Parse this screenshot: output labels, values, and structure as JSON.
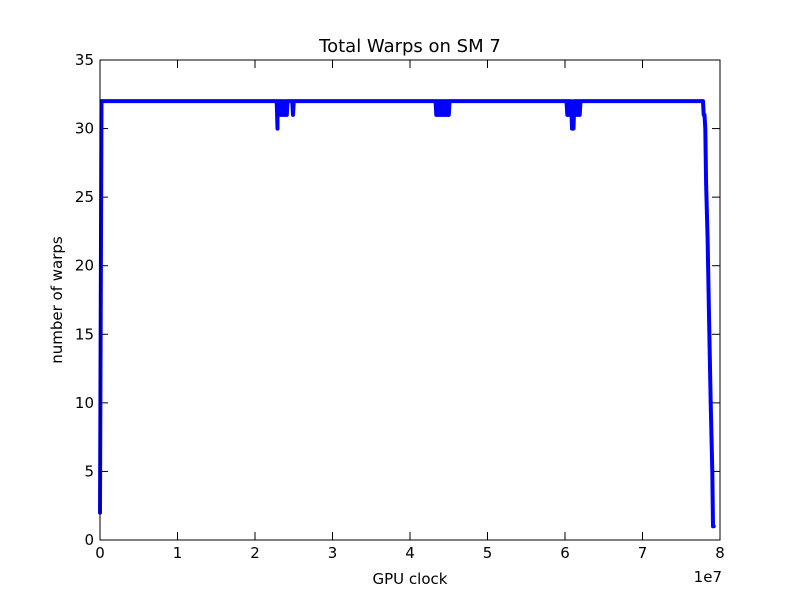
{
  "chart_data": {
    "type": "line",
    "title": "Total Warps on SM 7",
    "xlabel": "GPU clock",
    "ylabel": "number of warps",
    "x_offset_label": "1e7",
    "xlim": [
      0,
      8
    ],
    "ylim": [
      0,
      35
    ],
    "x_ticks": [
      "0",
      "1",
      "2",
      "3",
      "4",
      "5",
      "6",
      "7",
      "8"
    ],
    "y_ticks": [
      "0",
      "5",
      "10",
      "15",
      "20",
      "25",
      "30",
      "35"
    ],
    "grid": false,
    "series": [
      {
        "color": "#0000ff",
        "x": [
          0.0,
          0.02,
          0.05,
          2.28,
          2.29,
          2.29,
          2.3,
          2.31,
          2.32,
          2.33,
          2.34,
          2.35,
          2.36,
          2.37,
          2.38,
          2.39,
          2.4,
          2.41,
          2.42,
          2.48,
          2.49,
          2.5,
          2.51,
          4.33,
          4.34,
          4.35,
          4.36,
          4.37,
          4.38,
          4.39,
          4.4,
          4.41,
          4.42,
          4.43,
          4.44,
          4.45,
          4.46,
          4.47,
          4.48,
          4.49,
          4.5,
          4.51,
          6.02,
          6.03,
          6.04,
          6.05,
          6.06,
          6.07,
          6.08,
          6.09,
          6.1,
          6.11,
          6.12,
          6.13,
          6.14,
          6.15,
          6.16,
          6.17,
          6.18,
          6.19,
          6.2,
          6.21,
          7.78,
          7.79,
          7.8,
          7.81,
          7.82,
          7.84,
          7.86,
          7.88,
          7.9,
          7.91,
          7.92
        ],
        "y": [
          2,
          32,
          32,
          32,
          30,
          32,
          31,
          32,
          31,
          32,
          31,
          32,
          31,
          32,
          31,
          31,
          32,
          31,
          32,
          32,
          31,
          32,
          32,
          32,
          31,
          32,
          31,
          32,
          31,
          32,
          31,
          32,
          31,
          32,
          31,
          32,
          31,
          32,
          31,
          32,
          31,
          32,
          32,
          31,
          32,
          31,
          32,
          31,
          32,
          30,
          31,
          30,
          32,
          31,
          32,
          31,
          32,
          31,
          32,
          31,
          32,
          32,
          32,
          31,
          31,
          30,
          26,
          22,
          16,
          10,
          5,
          1,
          1
        ]
      }
    ]
  }
}
